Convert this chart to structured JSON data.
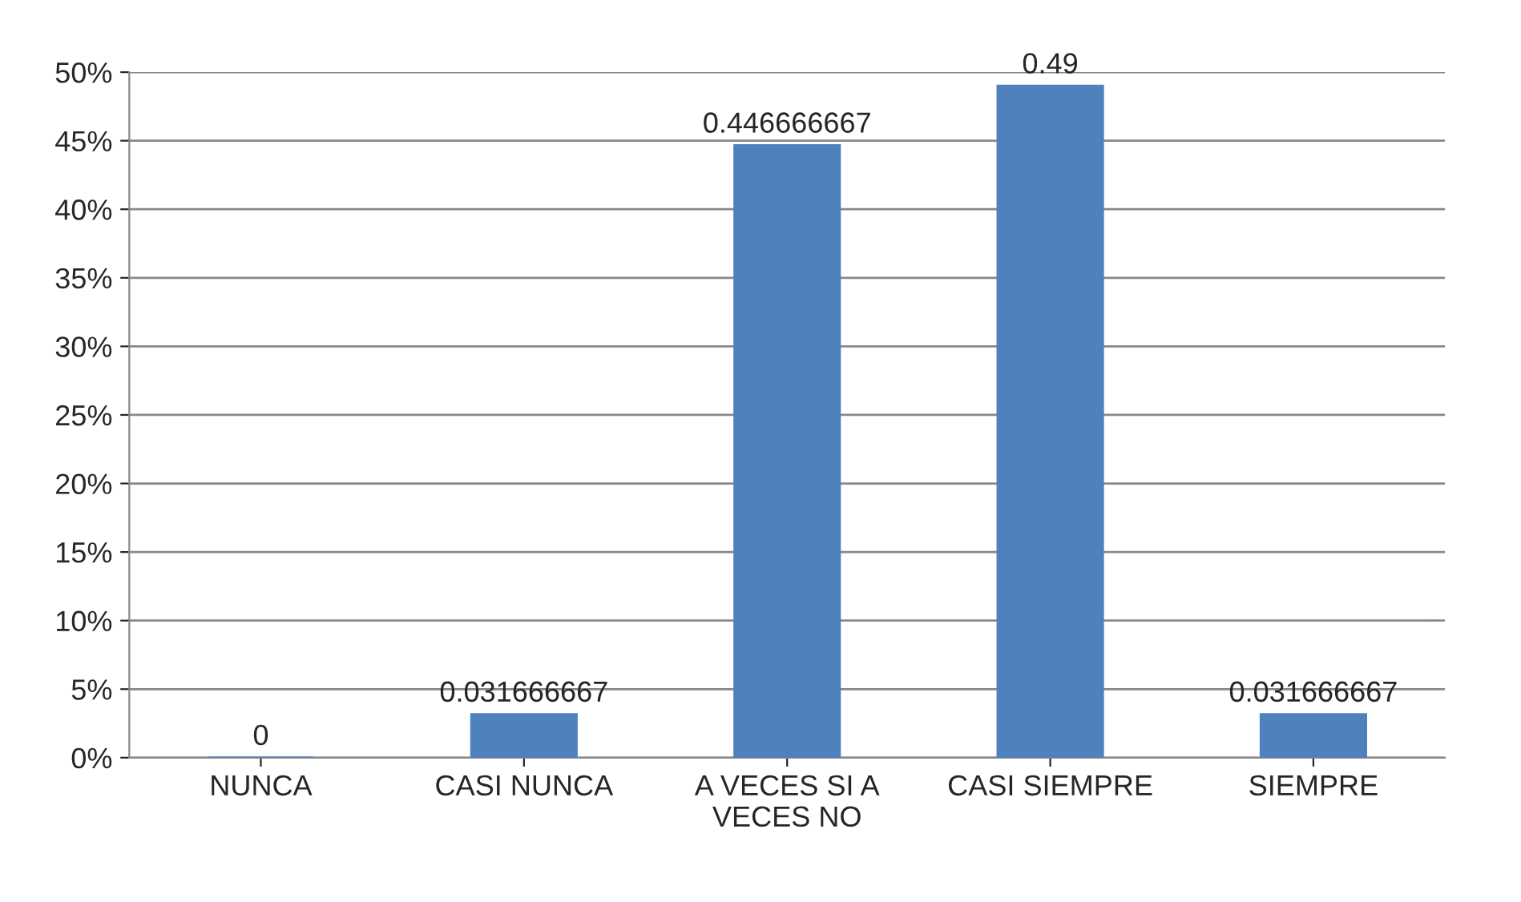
{
  "chart_data": {
    "type": "bar",
    "categories": [
      "NUNCA",
      "CASI NUNCA",
      "A VECES SI A VECES NO",
      "CASI SIEMPRE",
      "SIEMPRE"
    ],
    "values": [
      0,
      0.031666667,
      0.446666667,
      0.49,
      0.031666667
    ],
    "color": "#4f81bd",
    "ylim": [
      0,
      0.5
    ],
    "yticks": [
      {
        "value": 0,
        "label": "0%"
      },
      {
        "value": 0.05,
        "label": "5%"
      },
      {
        "value": 0.1,
        "label": "10%"
      },
      {
        "value": 0.15,
        "label": "15%"
      },
      {
        "value": 0.2,
        "label": "20%"
      },
      {
        "value": 0.25,
        "label": "25%"
      },
      {
        "value": 0.3,
        "label": "30%"
      },
      {
        "value": 0.35,
        "label": "35%"
      },
      {
        "value": 0.4,
        "label": "40%"
      },
      {
        "value": 0.45,
        "label": "45%"
      },
      {
        "value": 0.5,
        "label": "50%"
      }
    ],
    "grid": "y",
    "data_labels": true
  }
}
